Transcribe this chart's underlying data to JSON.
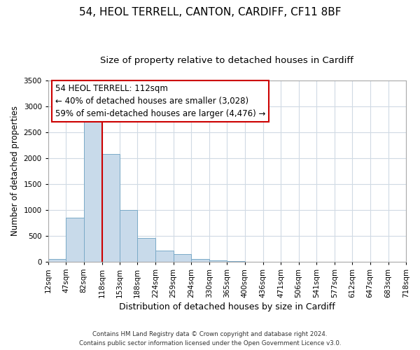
{
  "title": "54, HEOL TERRELL, CANTON, CARDIFF, CF11 8BF",
  "subtitle": "Size of property relative to detached houses in Cardiff",
  "xlabel": "Distribution of detached houses by size in Cardiff",
  "ylabel": "Number of detached properties",
  "bar_color": "#c8daea",
  "bar_edge_color": "#7aaac8",
  "bins": [
    12,
    47,
    82,
    118,
    153,
    188,
    224,
    259,
    294,
    330,
    365,
    400,
    436,
    471,
    506,
    541,
    577,
    612,
    647,
    683,
    718
  ],
  "bin_labels": [
    "12sqm",
    "47sqm",
    "82sqm",
    "118sqm",
    "153sqm",
    "188sqm",
    "224sqm",
    "259sqm",
    "294sqm",
    "330sqm",
    "365sqm",
    "400sqm",
    "436sqm",
    "471sqm",
    "506sqm",
    "541sqm",
    "577sqm",
    "612sqm",
    "647sqm",
    "683sqm",
    "718sqm"
  ],
  "values": [
    55,
    855,
    2730,
    2080,
    1005,
    455,
    210,
    145,
    50,
    30,
    10,
    0,
    0,
    0,
    0,
    0,
    0,
    0,
    0,
    0
  ],
  "vline_x": 118,
  "vline_color": "#cc0000",
  "ylim": [
    0,
    3500
  ],
  "yticks": [
    0,
    500,
    1000,
    1500,
    2000,
    2500,
    3000,
    3500
  ],
  "annotation_title": "54 HEOL TERRELL: 112sqm",
  "annotation_line1": "← 40% of detached houses are smaller (3,028)",
  "annotation_line2": "59% of semi-detached houses are larger (4,476) →",
  "footer_line1": "Contains HM Land Registry data © Crown copyright and database right 2024.",
  "footer_line2": "Contains public sector information licensed under the Open Government Licence v3.0.",
  "background_color": "#ffffff",
  "plot_bg_color": "#ffffff",
  "grid_color": "#d0dae4",
  "title_fontsize": 11,
  "subtitle_fontsize": 9.5,
  "tick_fontsize": 7.5,
  "ylabel_fontsize": 8.5,
  "xlabel_fontsize": 9
}
